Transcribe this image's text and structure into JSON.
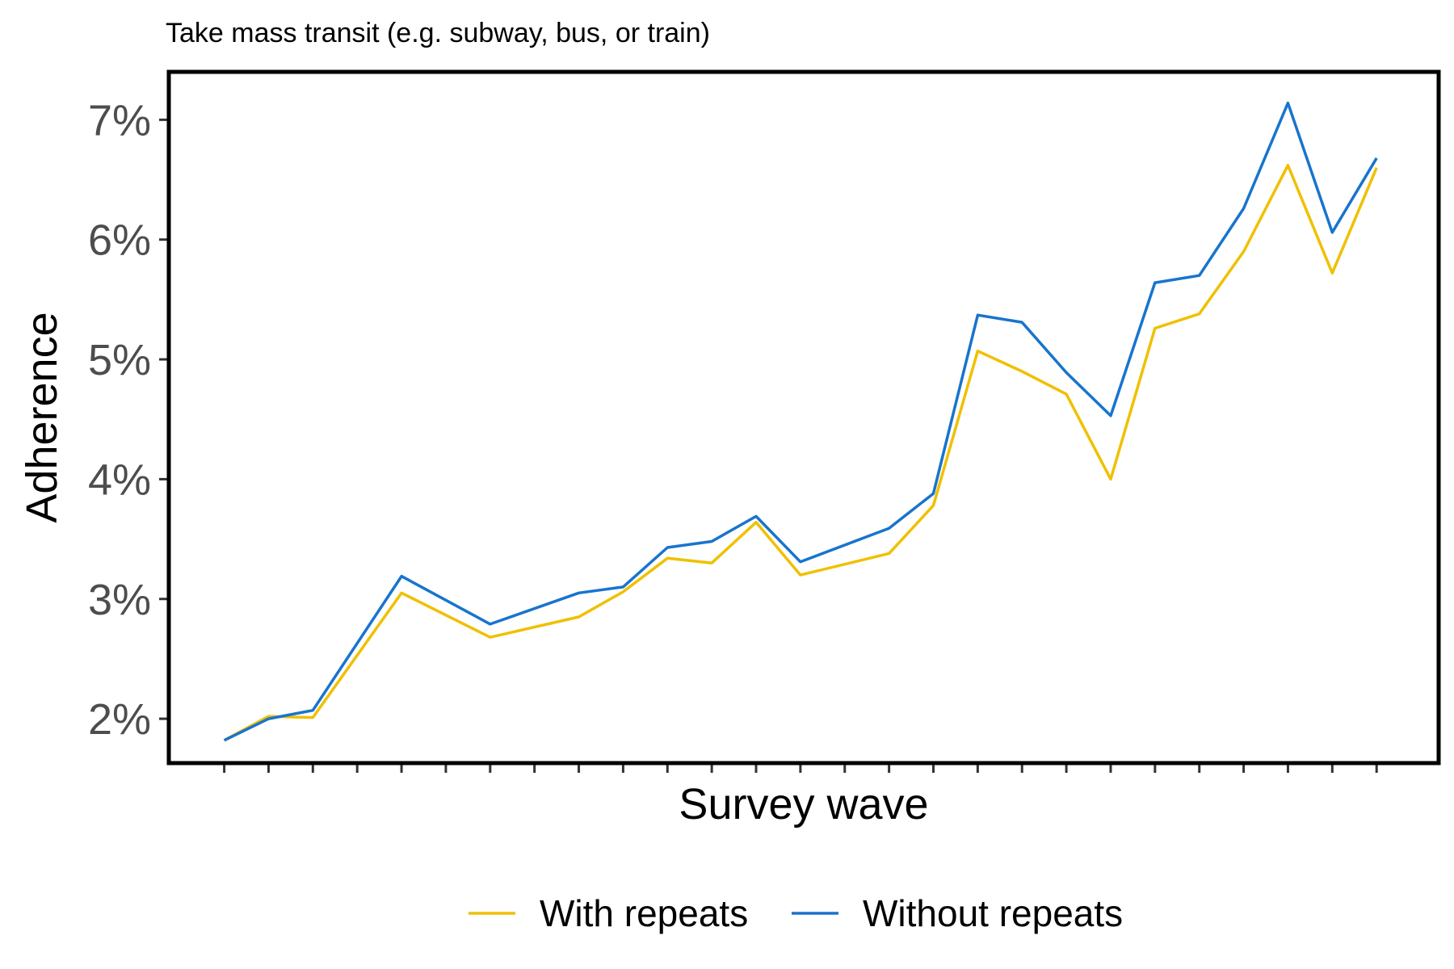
{
  "chart_data": {
    "type": "line",
    "title": "Take mass transit (e.g. subway, bus, or train)",
    "xlabel": "Survey wave",
    "ylabel": "Adherence",
    "x": [
      1,
      2,
      3,
      4,
      5,
      6,
      7,
      8,
      9,
      10,
      11,
      12,
      13,
      14,
      15,
      16,
      17,
      18,
      19,
      20,
      21,
      22,
      23,
      24,
      25,
      26,
      27
    ],
    "xlim": [
      -0.25,
      28.4
    ],
    "ylim": [
      1.63,
      7.4
    ],
    "yticks": [
      2,
      3,
      4,
      5,
      6,
      7
    ],
    "ytick_labels": [
      "2%",
      "3%",
      "4%",
      "5%",
      "6%",
      "7%"
    ],
    "grid": false,
    "legend_position": "bottom",
    "series": [
      {
        "name": "With repeats",
        "color": "#EFC000",
        "values": [
          1.82,
          2.02,
          2.01,
          null,
          3.05,
          null,
          2.68,
          null,
          2.85,
          3.06,
          3.34,
          3.3,
          3.64,
          3.2,
          null,
          3.38,
          3.78,
          5.07,
          4.9,
          4.71,
          4.0,
          5.26,
          5.38,
          5.9,
          6.62,
          5.72,
          6.6
        ]
      },
      {
        "name": "Without repeats",
        "color": "#1874CD",
        "values": [
          1.82,
          2.0,
          2.07,
          null,
          3.19,
          null,
          2.79,
          null,
          3.05,
          3.1,
          3.43,
          3.48,
          3.69,
          3.31,
          null,
          3.59,
          3.88,
          5.37,
          5.31,
          4.89,
          4.53,
          5.64,
          5.7,
          6.26,
          7.14,
          6.06,
          6.68
        ]
      }
    ]
  }
}
